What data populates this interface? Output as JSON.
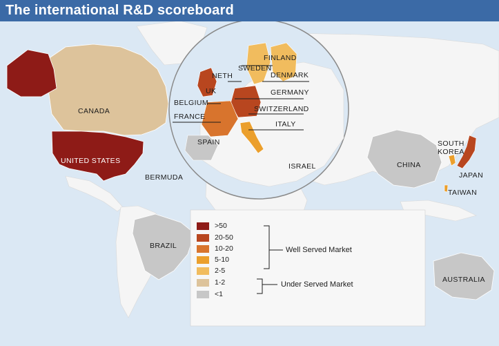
{
  "title": "The international R&D scoreboard",
  "countries": {
    "canada": {
      "label": "CANADA",
      "category": "1-2"
    },
    "united_states": {
      "label": "UNITED STATES",
      "category": ">50"
    },
    "alaska": {
      "category": ">50"
    },
    "bermuda": {
      "label": "BERMUDA"
    },
    "brazil": {
      "label": "BRAZIL",
      "category": "<1"
    },
    "finland": {
      "label": "FINLAND",
      "category": "2-5"
    },
    "sweden": {
      "label": "SWEDEN",
      "category": "2-5"
    },
    "denmark": {
      "label": "DENMARK"
    },
    "netherlands": {
      "label": "NETH"
    },
    "uk": {
      "label": "UK",
      "category": "20-50"
    },
    "germany": {
      "label": "GERMANY",
      "category": "20-50"
    },
    "belgium": {
      "label": "BELGIUM"
    },
    "switzerland": {
      "label": "SWITZERLAND"
    },
    "france": {
      "label": "FRANCE",
      "category": "10-20"
    },
    "italy": {
      "label": "ITALY",
      "category": "5-10"
    },
    "spain": {
      "label": "SPAIN",
      "category": "<1"
    },
    "israel": {
      "label": "ISRAEL"
    },
    "china": {
      "label": "CHINA",
      "category": "<1"
    },
    "south_korea": {
      "label": "SOUTH KOREA",
      "category": "5-10"
    },
    "japan": {
      "label": "JAPAN",
      "category": "20-50"
    },
    "taiwan": {
      "label": "TAIWAN",
      "category": "5-10"
    },
    "australia": {
      "label": "AUSTRALIA",
      "category": "<1"
    }
  },
  "legend": {
    "items": [
      {
        "label": ">50",
        "color": "#8e1b17"
      },
      {
        "label": "20-50",
        "color": "#b8461f"
      },
      {
        "label": "10-20",
        "color": "#d8742d"
      },
      {
        "label": "5-10",
        "color": "#eb9f2c"
      },
      {
        "label": "2-5",
        "color": "#f1bc5e"
      },
      {
        "label": "1-2",
        "color": "#ddc39b"
      },
      {
        "label": "<1",
        "color": "#c7c7c7"
      }
    ],
    "groups": {
      "well_served": "Well Served Market",
      "under_served": "Under Served Market"
    }
  },
  "colors": {
    "ocean": "#dbe8f4",
    "land": "#f4f4f4",
    "title_bar": "#3b6aa6"
  }
}
